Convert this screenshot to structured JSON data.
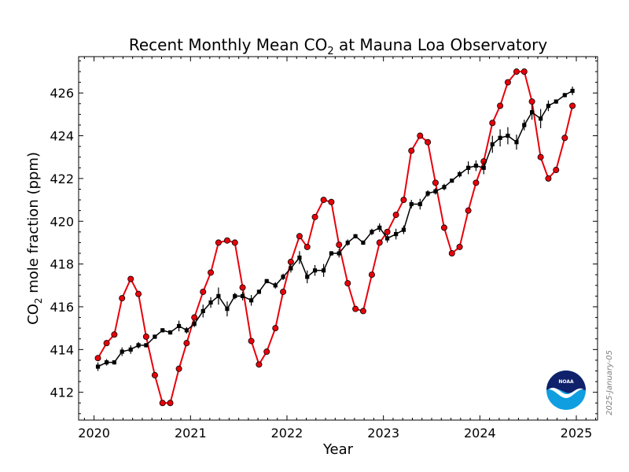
{
  "chart_data": {
    "type": "line",
    "title_main": "Recent Monthly Mean CO",
    "title_sub": "2",
    "title_rest": " at Mauna Loa Observatory",
    "xlabel": "Year",
    "ylabel_main": "CO",
    "ylabel_sub": "2",
    "ylabel_rest": " mole fraction (ppm)",
    "xlim": [
      2019.84,
      2025.22
    ],
    "ylim": [
      410.7,
      427.7
    ],
    "x_ticks": [
      2020,
      2021,
      2022,
      2023,
      2024,
      2025
    ],
    "y_ticks": [
      412,
      414,
      416,
      418,
      420,
      422,
      424,
      426
    ],
    "grid": false,
    "series": [
      {
        "color": "#e8000b",
        "marker": "circle",
        "x": [
          2020.04,
          2020.13,
          2020.21,
          2020.29,
          2020.38,
          2020.46,
          2020.54,
          2020.63,
          2020.71,
          2020.79,
          2020.88,
          2020.96,
          2021.04,
          2021.13,
          2021.21,
          2021.29,
          2021.38,
          2021.46,
          2021.54,
          2021.63,
          2021.71,
          2021.79,
          2021.88,
          2021.96,
          2022.04,
          2022.13,
          2022.21,
          2022.29,
          2022.38,
          2022.46,
          2022.54,
          2022.63,
          2022.71,
          2022.79,
          2022.88,
          2022.96,
          2023.04,
          2023.13,
          2023.21,
          2023.29,
          2023.38,
          2023.46,
          2023.54,
          2023.63,
          2023.71,
          2023.79,
          2023.88,
          2023.96,
          2024.04,
          2024.13,
          2024.21,
          2024.29,
          2024.38,
          2024.46,
          2024.54,
          2024.63,
          2024.71,
          2024.79,
          2024.88,
          2024.96
        ],
        "values": [
          413.6,
          414.3,
          414.7,
          416.4,
          417.3,
          416.6,
          414.6,
          412.8,
          411.5,
          411.5,
          413.1,
          414.3,
          415.5,
          416.7,
          417.6,
          419.0,
          419.1,
          419.0,
          416.9,
          414.4,
          413.3,
          413.9,
          415.0,
          416.7,
          418.1,
          419.3,
          418.8,
          420.2,
          421.0,
          420.9,
          418.9,
          417.1,
          415.9,
          415.8,
          417.5,
          419.0,
          419.5,
          420.3,
          421.0,
          423.3,
          424.0,
          423.7,
          421.8,
          419.7,
          418.5,
          418.8,
          420.5,
          421.8,
          422.8,
          424.6,
          425.4,
          426.5,
          427.0,
          427.0,
          425.6,
          423.0,
          422.0,
          422.4,
          423.9,
          425.4
        ]
      },
      {
        "color": "#000000",
        "marker": "square",
        "x": [
          2020.04,
          2020.13,
          2020.21,
          2020.29,
          2020.38,
          2020.46,
          2020.54,
          2020.63,
          2020.71,
          2020.79,
          2020.88,
          2020.96,
          2021.04,
          2021.13,
          2021.21,
          2021.29,
          2021.38,
          2021.46,
          2021.54,
          2021.63,
          2021.71,
          2021.79,
          2021.88,
          2021.96,
          2022.04,
          2022.13,
          2022.21,
          2022.29,
          2022.38,
          2022.46,
          2022.54,
          2022.63,
          2022.71,
          2022.79,
          2022.88,
          2022.96,
          2023.04,
          2023.13,
          2023.21,
          2023.29,
          2023.38,
          2023.46,
          2023.54,
          2023.63,
          2023.71,
          2023.79,
          2023.88,
          2023.96,
          2024.04,
          2024.13,
          2024.21,
          2024.29,
          2024.38,
          2024.46,
          2024.54,
          2024.63,
          2024.71,
          2024.79,
          2024.88,
          2024.96
        ],
        "values": [
          413.2,
          413.4,
          413.4,
          413.9,
          414.0,
          414.2,
          414.2,
          414.6,
          414.9,
          414.8,
          415.1,
          414.9,
          415.2,
          415.8,
          416.2,
          416.5,
          415.9,
          416.5,
          416.5,
          416.3,
          416.7,
          417.2,
          417.0,
          417.4,
          417.8,
          418.3,
          417.4,
          417.7,
          417.7,
          418.5,
          418.5,
          419.0,
          419.3,
          419.0,
          419.5,
          419.7,
          419.2,
          419.4,
          419.6,
          420.8,
          420.8,
          421.3,
          421.4,
          421.6,
          421.9,
          422.2,
          422.5,
          422.6,
          422.5,
          423.6,
          423.9,
          424.0,
          423.7,
          424.5,
          425.1,
          424.8,
          425.4,
          425.6,
          425.9,
          426.1
        ],
        "error_bars": [
          0.2,
          0.15,
          0.1,
          0.2,
          0.2,
          0.15,
          0.1,
          0.1,
          0.1,
          0.1,
          0.25,
          0.15,
          0.15,
          0.3,
          0.25,
          0.4,
          0.35,
          0.15,
          0.2,
          0.25,
          0.1,
          0.1,
          0.15,
          0.15,
          0.2,
          0.3,
          0.3,
          0.25,
          0.3,
          0.1,
          0.2,
          0.15,
          0.1,
          0.1,
          0.15,
          0.2,
          0.2,
          0.25,
          0.2,
          0.2,
          0.25,
          0.15,
          0.15,
          0.15,
          0.1,
          0.15,
          0.3,
          0.25,
          0.3,
          0.4,
          0.4,
          0.4,
          0.35,
          0.25,
          0.35,
          0.45,
          0.25,
          0.1,
          0.1,
          0.2
        ]
      }
    ]
  },
  "stamp": {
    "date_text": "2025-January-05"
  },
  "logo": {
    "text": "NOAA",
    "colors": {
      "dark": "#10216b",
      "light": "#0f9fe0",
      "wing": "#ffffff"
    }
  }
}
